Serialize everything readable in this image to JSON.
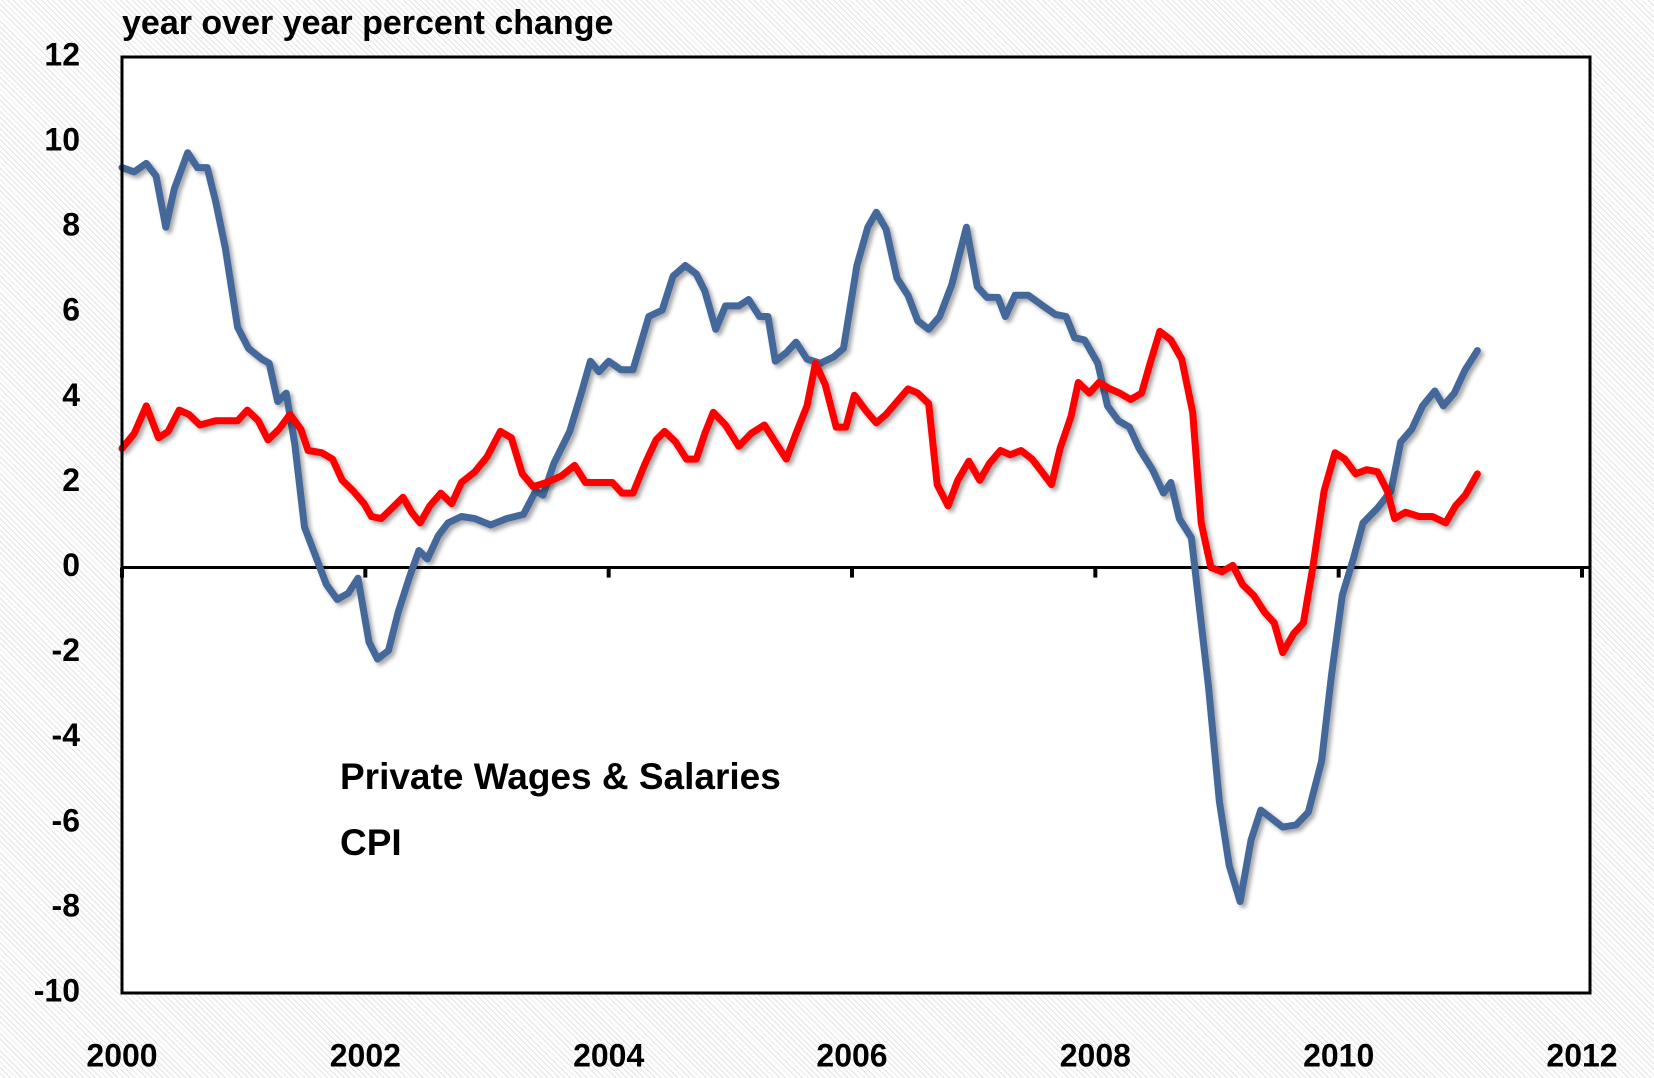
{
  "chart_data": {
    "type": "line",
    "title": "year over year percent change",
    "xlim": [
      2000,
      2012
    ],
    "xticks": [
      2000,
      2002,
      2004,
      2006,
      2008,
      2010,
      2012
    ],
    "ylim": [
      -10,
      12
    ],
    "yticks": [
      -10,
      -8,
      -6,
      -4,
      -2,
      0,
      2,
      4,
      6,
      8,
      10,
      12
    ],
    "legend": "lower left",
    "series": [
      {
        "name": "Private Wages & Salaries",
        "color": "#44689a",
        "x": [
          2000.0,
          2000.1,
          2000.2,
          2000.28,
          2000.36,
          2000.43,
          2000.54,
          2000.62,
          2000.7,
          2000.77,
          2000.85,
          2000.95,
          2001.04,
          2001.15,
          2001.21,
          2001.28,
          2001.35,
          2001.42,
          2001.5,
          2001.6,
          2001.68,
          2001.77,
          2001.86,
          2001.94,
          2002.03,
          2002.1,
          2002.19,
          2002.27,
          2002.36,
          2002.44,
          2002.51,
          2002.6,
          2002.68,
          2002.79,
          2002.9,
          2003.03,
          2003.16,
          2003.3,
          2003.4,
          2003.46,
          2003.55,
          2003.68,
          2003.77,
          2003.85,
          2003.92,
          2004.0,
          2004.1,
          2004.2,
          2004.33,
          2004.44,
          2004.53,
          2004.63,
          2004.72,
          2004.79,
          2004.88,
          2004.96,
          2005.07,
          2005.15,
          2005.24,
          2005.31,
          2005.37,
          2005.46,
          2005.54,
          2005.63,
          2005.74,
          2005.85,
          2005.93,
          2006.04,
          2006.13,
          2006.2,
          2006.28,
          2006.37,
          2006.46,
          2006.54,
          2006.63,
          2006.72,
          2006.82,
          2006.94,
          2007.03,
          2007.11,
          2007.2,
          2007.26,
          2007.34,
          2007.45,
          2007.57,
          2007.67,
          2007.76,
          2007.83,
          2007.91,
          2008.02,
          2008.1,
          2008.19,
          2008.28,
          2008.36,
          2008.47,
          2008.56,
          2008.62,
          2008.69,
          2008.79,
          2008.84,
          2008.93,
          2009.02,
          2009.1,
          2009.19,
          2009.28,
          2009.36,
          2009.45,
          2009.54,
          2009.65,
          2009.75,
          2009.86,
          2009.94,
          2010.03,
          2010.12,
          2010.2,
          2010.32,
          2010.43,
          2010.51,
          2010.6,
          2010.69,
          2010.79,
          2010.86,
          2010.95,
          2011.04,
          2011.14
        ],
        "values": [
          9.4,
          9.3,
          9.5,
          9.2,
          8.0,
          8.9,
          9.75,
          9.4,
          9.4,
          8.6,
          7.5,
          5.65,
          5.15,
          4.9,
          4.8,
          3.9,
          4.1,
          2.9,
          0.95,
          0.2,
          -0.4,
          -0.75,
          -0.6,
          -0.25,
          -1.75,
          -2.15,
          -1.95,
          -1.05,
          -0.25,
          0.4,
          0.2,
          0.75,
          1.05,
          1.2,
          1.15,
          1.0,
          1.15,
          1.25,
          1.8,
          1.7,
          2.45,
          3.2,
          4.05,
          4.85,
          4.6,
          4.85,
          4.65,
          4.65,
          5.9,
          6.05,
          6.85,
          7.1,
          6.9,
          6.5,
          5.6,
          6.15,
          6.15,
          6.3,
          5.9,
          5.9,
          4.85,
          5.05,
          5.3,
          4.9,
          4.8,
          4.95,
          5.15,
          7.1,
          8.0,
          8.35,
          7.95,
          6.8,
          6.4,
          5.8,
          5.6,
          5.9,
          6.65,
          8.0,
          6.6,
          6.35,
          6.35,
          5.9,
          6.4,
          6.4,
          6.15,
          5.95,
          5.9,
          5.4,
          5.35,
          4.8,
          3.8,
          3.45,
          3.3,
          2.8,
          2.3,
          1.75,
          2.0,
          1.15,
          0.7,
          -0.55,
          -2.8,
          -5.5,
          -7.0,
          -7.85,
          -6.4,
          -5.7,
          -5.9,
          -6.1,
          -6.05,
          -5.75,
          -4.55,
          -2.55,
          -0.65,
          0.2,
          1.05,
          1.4,
          1.8,
          2.95,
          3.25,
          3.8,
          4.15,
          3.8,
          4.1,
          4.65,
          5.1
        ]
      },
      {
        "name": "CPI",
        "color": "#ff0000",
        "x": [
          2000.0,
          2000.1,
          2000.2,
          2000.3,
          2000.38,
          2000.47,
          2000.55,
          2000.64,
          2000.77,
          2000.95,
          2001.03,
          2001.12,
          2001.2,
          2001.29,
          2001.38,
          2001.47,
          2001.53,
          2001.64,
          2001.73,
          2001.81,
          2001.9,
          2001.99,
          2002.05,
          2002.13,
          2002.22,
          2002.31,
          2002.38,
          2002.45,
          2002.53,
          2002.62,
          2002.71,
          2002.79,
          2002.9,
          2003.0,
          2003.11,
          2003.2,
          2003.29,
          2003.38,
          2003.49,
          2003.61,
          2003.72,
          2003.81,
          2003.94,
          2004.03,
          2004.11,
          2004.2,
          2004.3,
          2004.39,
          2004.46,
          2004.55,
          2004.64,
          2004.72,
          2004.79,
          2004.86,
          2004.96,
          2005.07,
          2005.17,
          2005.28,
          2005.37,
          2005.46,
          2005.54,
          2005.63,
          2005.7,
          2005.78,
          2005.87,
          2005.95,
          2006.02,
          2006.11,
          2006.2,
          2006.28,
          2006.37,
          2006.46,
          2006.54,
          2006.63,
          2006.7,
          2006.79,
          2006.87,
          2006.96,
          2007.05,
          2007.13,
          2007.22,
          2007.3,
          2007.39,
          2007.48,
          2007.56,
          2007.64,
          2007.71,
          2007.8,
          2007.86,
          2007.95,
          2008.03,
          2008.12,
          2008.2,
          2008.29,
          2008.38,
          2008.45,
          2008.53,
          2008.62,
          2008.71,
          2008.8,
          2008.87,
          2008.95,
          2009.04,
          2009.13,
          2009.21,
          2009.3,
          2009.39,
          2009.47,
          2009.54,
          2009.63,
          2009.71,
          2009.79,
          2009.88,
          2009.97,
          2010.05,
          2010.14,
          2010.23,
          2010.32,
          2010.4,
          2010.46,
          2010.55,
          2010.66,
          2010.77,
          2010.88,
          2010.96,
          2011.04,
          2011.14
        ],
        "values": [
          2.8,
          3.15,
          3.8,
          3.05,
          3.2,
          3.7,
          3.6,
          3.35,
          3.45,
          3.45,
          3.7,
          3.45,
          3.0,
          3.25,
          3.6,
          3.25,
          2.75,
          2.7,
          2.55,
          2.05,
          1.8,
          1.5,
          1.2,
          1.15,
          1.4,
          1.65,
          1.3,
          1.05,
          1.45,
          1.75,
          1.5,
          2.0,
          2.25,
          2.6,
          3.2,
          3.05,
          2.2,
          1.9,
          2.0,
          2.15,
          2.4,
          2.0,
          2.0,
          2.0,
          1.75,
          1.75,
          2.45,
          3.0,
          3.2,
          2.95,
          2.55,
          2.55,
          3.15,
          3.65,
          3.35,
          2.85,
          3.15,
          3.35,
          2.95,
          2.55,
          3.15,
          3.8,
          4.8,
          4.3,
          3.3,
          3.3,
          4.05,
          3.7,
          3.4,
          3.6,
          3.9,
          4.2,
          4.1,
          3.85,
          1.95,
          1.45,
          2.05,
          2.5,
          2.05,
          2.45,
          2.75,
          2.65,
          2.75,
          2.55,
          2.25,
          1.95,
          2.8,
          3.55,
          4.35,
          4.1,
          4.35,
          4.2,
          4.1,
          3.95,
          4.1,
          4.8,
          5.55,
          5.35,
          4.9,
          3.65,
          1.05,
          0.0,
          -0.1,
          0.05,
          -0.4,
          -0.65,
          -1.05,
          -1.3,
          -2.0,
          -1.55,
          -1.3,
          0.05,
          1.8,
          2.7,
          2.55,
          2.2,
          2.3,
          2.25,
          1.8,
          1.15,
          1.3,
          1.2,
          1.2,
          1.05,
          1.45,
          1.7,
          2.2
        ]
      }
    ]
  }
}
